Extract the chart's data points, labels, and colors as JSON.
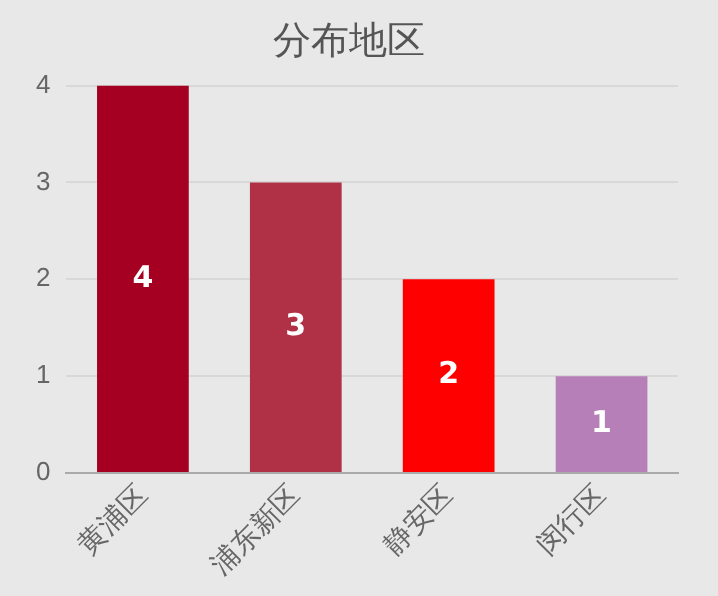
{
  "chart_data": {
    "type": "bar",
    "title": "分布地区",
    "categories": [
      "黄浦区",
      "浦东新区",
      "静安区",
      "闵行区"
    ],
    "values": [
      4,
      3,
      2,
      1
    ],
    "colors": [
      "#a50021",
      "#b03045",
      "#ff0000",
      "#b67fb7"
    ],
    "ylim": [
      0,
      4
    ],
    "yticks": [
      0,
      1,
      2,
      3,
      4
    ],
    "grid": "y",
    "data_labels": true,
    "legend": false
  }
}
